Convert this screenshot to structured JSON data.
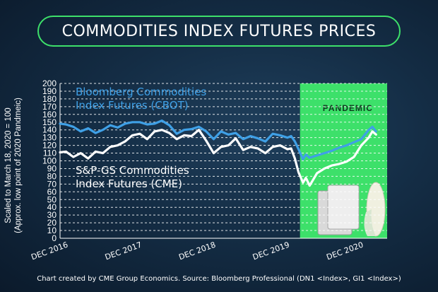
{
  "header": {
    "title": "COMMODITIES INDEX FUTURES PRICES"
  },
  "y_axis_title": {
    "line1": "Scaled to March 18, 2020 = 100",
    "line2": "(Approx. low point of 2020 Pandmeic)"
  },
  "footnote": "Chart created by CME Group Economics. Source: Bloomberg Professional (DN1 <Index>, GI1 <Index>)",
  "colors": {
    "bloomberg": "#3fa0e6",
    "sp_gs": "#ffffff",
    "pandemic": "#3de06a",
    "accent": "#3de06a"
  },
  "chart_data": {
    "type": "line",
    "title": "COMMODITIES INDEX FUTURES PRICES",
    "ylabel": "Scaled to March 18, 2020 = 100 (Approx. low point of 2020 Pandmeic)",
    "ylim": [
      0,
      200
    ],
    "yticks": [
      "0",
      "10",
      "20",
      "30",
      "40",
      "50",
      "60",
      "70",
      "80",
      "90",
      "100",
      "110",
      "120",
      "130",
      "140",
      "150",
      "160",
      "170",
      "180",
      "190",
      "200"
    ],
    "xlim": [
      2016.92,
      2021.35
    ],
    "xticks": [
      {
        "x": 2016.92,
        "label": "DEC 2016"
      },
      {
        "x": 2017.92,
        "label": "DEC 2017"
      },
      {
        "x": 2018.92,
        "label": "DEC 2018"
      },
      {
        "x": 2019.92,
        "label": "DEC 2019"
      },
      {
        "x": 2020.92,
        "label": "DEC 2020"
      }
    ],
    "grid": "horizontal dashed",
    "highlight": {
      "label": "PANDEMIC",
      "from": 2020.17,
      "to": 2021.35
    },
    "series": [
      {
        "name": "Bloomberg Commodities Index Futures (CBOT)",
        "label_lines": [
          "Bloomberg Commodities",
          "Index Futures (CBOT)"
        ],
        "x": [
          2016.92,
          2017.0,
          2017.1,
          2017.2,
          2017.3,
          2017.4,
          2017.5,
          2017.6,
          2017.7,
          2017.8,
          2017.9,
          2018.0,
          2018.1,
          2018.2,
          2018.3,
          2018.4,
          2018.5,
          2018.6,
          2018.7,
          2018.8,
          2018.9,
          2019.0,
          2019.1,
          2019.2,
          2019.3,
          2019.4,
          2019.5,
          2019.6,
          2019.7,
          2019.8,
          2019.9,
          2020.0,
          2020.05,
          2020.1,
          2020.15,
          2020.21,
          2020.25,
          2020.3,
          2020.4,
          2020.5,
          2020.6,
          2020.7,
          2020.8,
          2020.9,
          2021.0,
          2021.1,
          2021.15,
          2021.2
        ],
        "values": [
          148,
          147,
          144,
          138,
          142,
          136,
          140,
          146,
          143,
          148,
          150,
          150,
          147,
          148,
          152,
          146,
          135,
          140,
          141,
          144,
          138,
          128,
          138,
          134,
          136,
          128,
          132,
          129,
          125,
          135,
          133,
          130,
          132,
          125,
          115,
          102,
          108,
          104,
          107,
          110,
          113,
          117,
          120,
          124,
          128,
          140,
          144,
          138
        ]
      },
      {
        "name": "S&P-GS Commodities Index Futures (CME)",
        "label_lines": [
          "S&P-GS Commodities",
          "Index Futures (CME)"
        ],
        "x": [
          2016.92,
          2017.0,
          2017.1,
          2017.2,
          2017.3,
          2017.4,
          2017.5,
          2017.6,
          2017.7,
          2017.8,
          2017.9,
          2018.0,
          2018.1,
          2018.2,
          2018.3,
          2018.4,
          2018.5,
          2018.6,
          2018.7,
          2018.8,
          2018.9,
          2019.0,
          2019.1,
          2019.2,
          2019.3,
          2019.4,
          2019.5,
          2019.6,
          2019.7,
          2019.8,
          2019.9,
          2020.0,
          2020.05,
          2020.1,
          2020.15,
          2020.21,
          2020.25,
          2020.3,
          2020.35,
          2020.4,
          2020.5,
          2020.6,
          2020.7,
          2020.8,
          2020.9,
          2021.0,
          2021.1,
          2021.15,
          2021.2
        ],
        "values": [
          111,
          112,
          105,
          110,
          103,
          112,
          110,
          118,
          120,
          125,
          133,
          135,
          128,
          138,
          140,
          136,
          128,
          133,
          132,
          140,
          126,
          110,
          118,
          120,
          129,
          114,
          118,
          116,
          110,
          118,
          120,
          115,
          116,
          103,
          85,
          72,
          78,
          68,
          76,
          84,
          90,
          94,
          96,
          99,
          105,
          120,
          130,
          138,
          134
        ]
      }
    ]
  }
}
